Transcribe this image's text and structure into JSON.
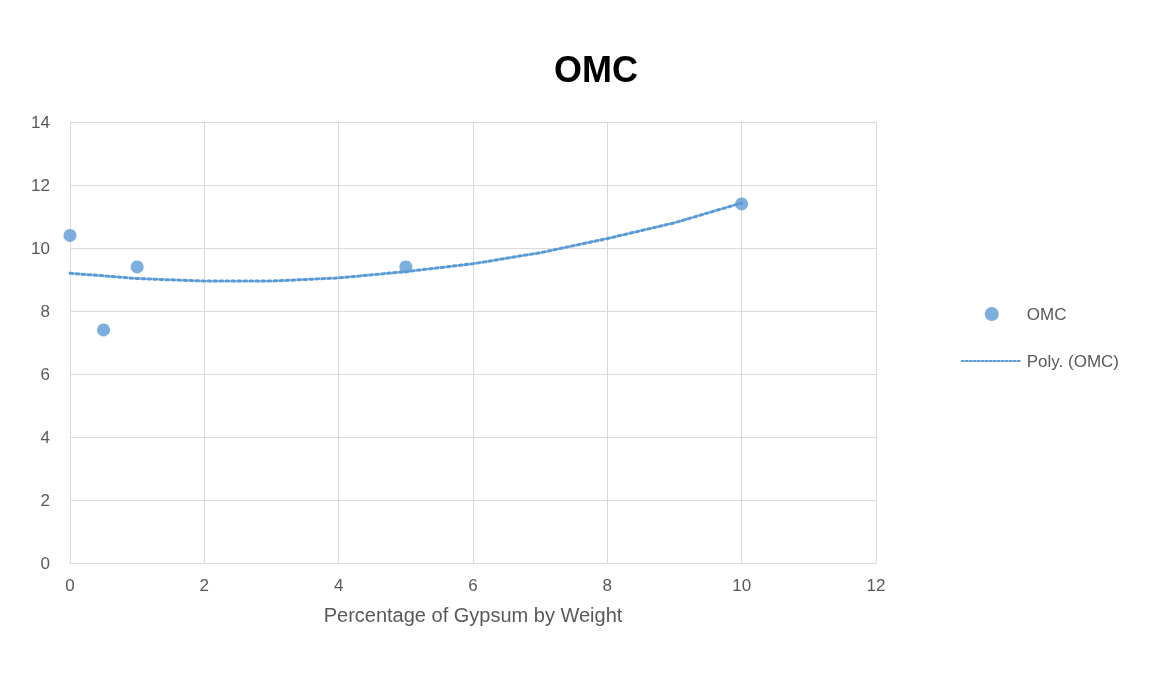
{
  "chart_data": {
    "type": "scatter",
    "title": "OMC",
    "xlabel": "Percentage of Gypsum by Weight",
    "xlim": [
      0,
      12
    ],
    "xticks": [
      0,
      2,
      4,
      6,
      8,
      10,
      12
    ],
    "ylim": [
      0,
      14
    ],
    "yticks": [
      0,
      2,
      4,
      6,
      8,
      10,
      12,
      14
    ],
    "grid": true,
    "legend": "right",
    "series": [
      {
        "name": "OMC",
        "color": "#5b9bd5",
        "marker": "circle",
        "x": [
          0,
          0.5,
          1,
          5,
          10
        ],
        "values": [
          10.4,
          7.4,
          9.4,
          9.4,
          11.4
        ]
      },
      {
        "name": "Poly. (OMC)",
        "type": "line",
        "color": "#5b9bd5",
        "marker": "none",
        "line_style": "dotted",
        "x": [
          0,
          1,
          2,
          3,
          4,
          5,
          6,
          7,
          8,
          9,
          10
        ],
        "values": [
          9.2,
          9.03,
          8.95,
          8.95,
          9.05,
          9.25,
          9.5,
          9.85,
          10.3,
          10.8,
          11.43
        ]
      }
    ]
  }
}
